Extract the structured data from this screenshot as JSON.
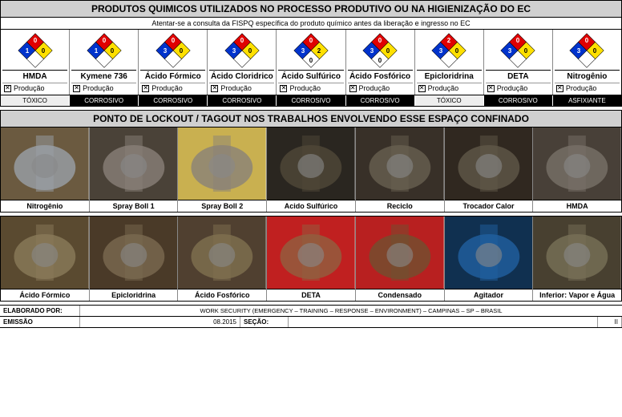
{
  "section1": {
    "title": "PRODUTOS QUIMICOS UTILIZADOS NO PROCESSO PRODUTIVO OU NA HIGIENIZAÇÃO DO EC",
    "subtitle": "Atentar-se a consulta da FISPQ específica do produto químico antes da liberação e ingresso no EC",
    "prod_label": "Produção",
    "chemicals": [
      {
        "name": "HMDA",
        "h": "1",
        "f": "0",
        "r": "0",
        "s": "",
        "hazard": "TÓXICO",
        "hazard_light": true
      },
      {
        "name": "Kymene 736",
        "h": "1",
        "f": "0",
        "r": "0",
        "s": "",
        "hazard": "CORROSIVO",
        "hazard_light": false
      },
      {
        "name": "Ácido Fórmico",
        "h": "3",
        "f": "0",
        "r": "0",
        "s": "",
        "hazard": "CORROSIVO",
        "hazard_light": false
      },
      {
        "name": "Ácido Cloridrico",
        "h": "3",
        "f": "0",
        "r": "0",
        "s": "",
        "hazard": "CORROSIVO",
        "hazard_light": false
      },
      {
        "name": "Ácido Sulfúrico",
        "h": "3",
        "f": "0",
        "r": "2",
        "s": "0",
        "hazard": "CORROSIVO",
        "hazard_light": false
      },
      {
        "name": "Ácido Fosfórico",
        "h": "3",
        "f": "0",
        "r": "0",
        "s": "0",
        "hazard": "CORROSIVO",
        "hazard_light": false
      },
      {
        "name": "Epicloridrina",
        "h": "3",
        "f": "2",
        "r": "0",
        "s": "",
        "hazard": "TÓXICO",
        "hazard_light": true
      },
      {
        "name": "DETA",
        "h": "3",
        "f": "0",
        "r": "0",
        "s": "",
        "hazard": "CORROSIVO",
        "hazard_light": false
      },
      {
        "name": "Nitrogênio",
        "h": "3",
        "f": "0",
        "r": "0",
        "s": "",
        "hazard": "ASFIXIANTE",
        "hazard_light": false
      }
    ]
  },
  "section2": {
    "title": "PONTO DE LOCKOUT / TAGOUT NOS TRABALHOS ENVOLVENDO ESSE ESPAÇO CONFINADO",
    "row1": [
      {
        "label": "Nitrogênio",
        "c1": "#9aa0a8",
        "c2": "#6b5a40"
      },
      {
        "label": "Spray Boll 1",
        "c1": "#888078",
        "c2": "#4a4238"
      },
      {
        "label": "Spray Boll 2",
        "c1": "#8a8278",
        "c2": "#c9b050"
      },
      {
        "label": "Acido Sulfúrico",
        "c1": "#504838",
        "c2": "#2a2620"
      },
      {
        "label": "Reciclo",
        "c1": "#686050",
        "c2": "#383028"
      },
      {
        "label": "Trocador Calor",
        "c1": "#605848",
        "c2": "#302820"
      },
      {
        "label": "HMDA",
        "c1": "#787068",
        "c2": "#484038"
      }
    ],
    "row2": [
      {
        "label": "Ácido Fórmico",
        "c1": "#8a7a5a",
        "c2": "#5a4a30"
      },
      {
        "label": "Epicloridrina",
        "c1": "#7a6a50",
        "c2": "#4a3a28"
      },
      {
        "label": "Ácido Fosfórico",
        "c1": "#807050",
        "c2": "#504030"
      },
      {
        "label": "DETA",
        "c1": "#906040",
        "c2": "#c02020"
      },
      {
        "label": "Condensado",
        "c1": "#705030",
        "c2": "#b82020"
      },
      {
        "label": "Agitador",
        "c1": "#2060a0",
        "c2": "#103050"
      },
      {
        "label": "Inferior: Vapor e Água",
        "c1": "#787058",
        "c2": "#484030"
      }
    ]
  },
  "footer": {
    "elaborado": "ELABORADO POR:",
    "emissao": "EMISSÃO",
    "secao": "SEÇÃO:",
    "date": "08.2015",
    "org": "WORK SECURITY (EMERGENCY – TRAINING – RESPONSE – ENVIRONMENT) – CAMPINAS – SP – BRASIL",
    "page": "II"
  },
  "colors": {
    "nfpa_blue": "#0033cc",
    "nfpa_red": "#e00000",
    "nfpa_yellow": "#ffe000",
    "nfpa_white": "#ffffff"
  }
}
